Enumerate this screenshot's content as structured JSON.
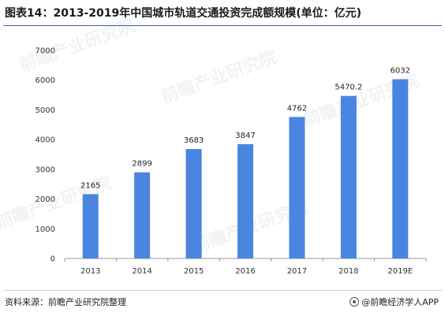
{
  "title": "图表14：2013-2019年中国城市轨道交通投资完成额规模(单位：亿元)",
  "footer": {
    "source": "资料来源：前瞻产业研究院整理",
    "brand": "@前瞻经济学人APP",
    "brand_icon": "wechat-icon"
  },
  "watermark": {
    "text": "前瞻产业研究院"
  },
  "colors": {
    "bar": "#4a86e0",
    "title_rule": "#3b5fa8",
    "axis": "#999999"
  },
  "chart_data": {
    "type": "bar",
    "title": "",
    "xlabel": "",
    "ylabel": "",
    "categories": [
      "2013",
      "2014",
      "2015",
      "2016",
      "2017",
      "2018",
      "2019E"
    ],
    "values": [
      2165,
      2899,
      3683,
      3847,
      4762,
      5470.2,
      6032
    ],
    "value_labels": [
      "2165",
      "2899",
      "3683",
      "3847",
      "4762",
      "5470.2",
      "6032"
    ],
    "ylim": [
      0,
      7000
    ],
    "yticks": [
      0,
      1000,
      2000,
      3000,
      4000,
      5000,
      6000,
      7000
    ],
    "grid": false,
    "legend": "none"
  }
}
